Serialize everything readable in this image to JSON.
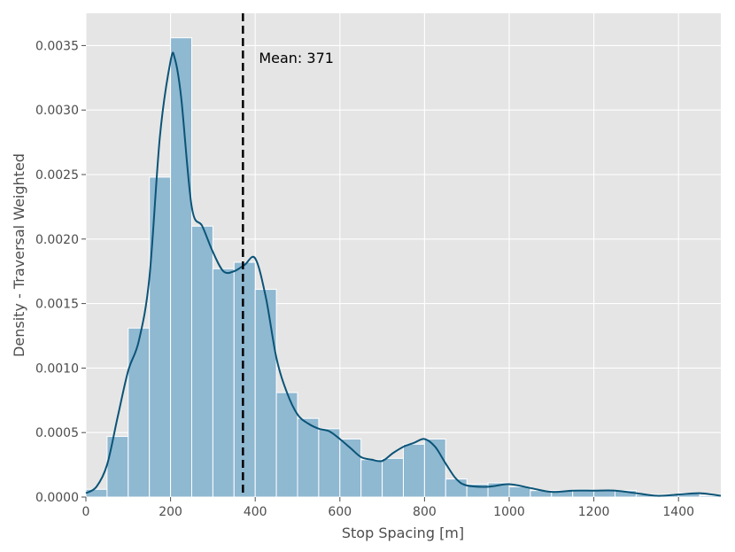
{
  "chart_data": {
    "type": "histogram",
    "xlabel": "Stop Spacing [m]",
    "ylabel": "Density - Traversal Weighted",
    "xlim": [
      0,
      1500
    ],
    "ylim": [
      0,
      0.00375
    ],
    "x_ticks": [
      0,
      200,
      400,
      600,
      800,
      1000,
      1200,
      1400
    ],
    "y_ticks": [
      0.0,
      0.0005,
      0.001,
      0.0015,
      0.002,
      0.0025,
      0.003,
      0.0035
    ],
    "y_tick_labels": [
      "0.0000",
      "0.0005",
      "0.0010",
      "0.0015",
      "0.0020",
      "0.0025",
      "0.0030",
      "0.0035"
    ],
    "grid": true,
    "bin_width": 50,
    "bin_starts": [
      0,
      50,
      100,
      150,
      200,
      250,
      300,
      350,
      400,
      450,
      500,
      550,
      600,
      650,
      700,
      750,
      800,
      850,
      900,
      950,
      1000,
      1050,
      1100,
      1150,
      1200,
      1250,
      1300,
      1350,
      1400,
      1450
    ],
    "density": [
      6e-05,
      0.00047,
      0.00131,
      0.00248,
      0.00356,
      0.0021,
      0.00177,
      0.00182,
      0.00161,
      0.00081,
      0.00061,
      0.00053,
      0.00045,
      0.00029,
      0.0003,
      0.00041,
      0.00045,
      0.00014,
      0.0001,
      0.00011,
      8e-05,
      5e-05,
      5e-05,
      6e-05,
      5e-05,
      5e-05,
      2e-05,
      2e-05,
      3e-05,
      1e-05
    ],
    "kde": {
      "x": [
        0,
        25,
        50,
        75,
        100,
        125,
        150,
        175,
        200,
        210,
        225,
        250,
        275,
        300,
        325,
        350,
        375,
        400,
        425,
        450,
        475,
        500,
        525,
        550,
        575,
        600,
        625,
        650,
        675,
        700,
        725,
        750,
        775,
        800,
        825,
        850,
        875,
        900,
        950,
        1000,
        1050,
        1100,
        1150,
        1200,
        1250,
        1300,
        1350,
        1400,
        1450,
        1500
      ],
      "y": [
        3e-05,
        8e-05,
        0.00025,
        0.00062,
        0.00098,
        0.00121,
        0.0017,
        0.0028,
        0.00338,
        0.0034,
        0.0031,
        0.00225,
        0.0021,
        0.0019,
        0.00175,
        0.00175,
        0.0018,
        0.00185,
        0.00155,
        0.00108,
        0.00081,
        0.00064,
        0.00057,
        0.00053,
        0.00051,
        0.00045,
        0.00038,
        0.00031,
        0.00029,
        0.00028,
        0.00034,
        0.00039,
        0.00042,
        0.00045,
        0.00039,
        0.00026,
        0.00014,
        9e-05,
        8e-05,
        0.0001,
        7e-05,
        4e-05,
        5e-05,
        5e-05,
        5e-05,
        3e-05,
        1e-05,
        2e-05,
        3e-05,
        1e-05
      ]
    },
    "mean": {
      "value": 371,
      "label": "Mean: 371"
    },
    "colors": {
      "background": "#e5e5e5",
      "bar_fill": "#8fb8d1",
      "bar_edge": "#ffffff",
      "kde_line": "#0b5477",
      "mean_line": "#000000",
      "grid": "#ffffff"
    }
  }
}
